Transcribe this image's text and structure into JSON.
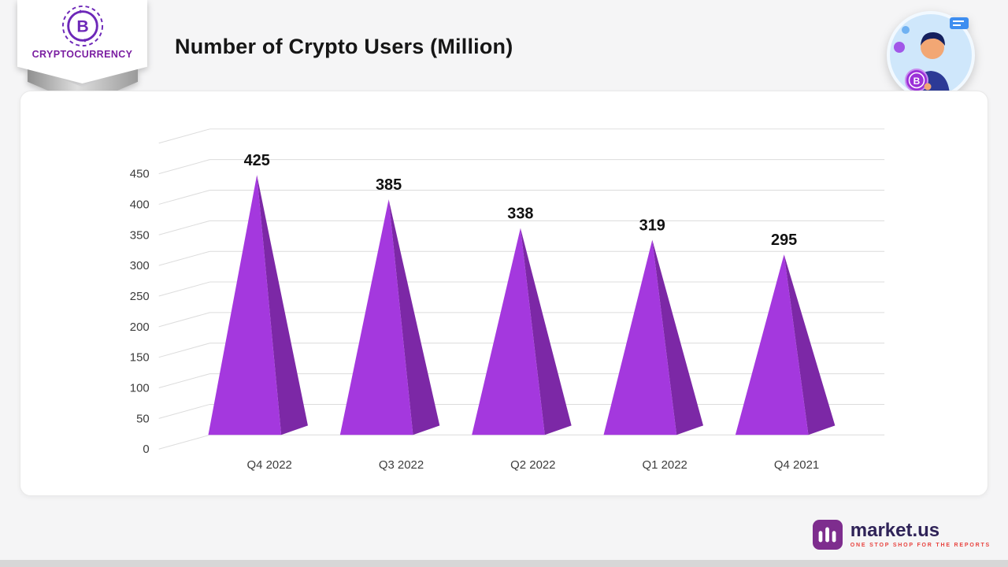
{
  "header": {
    "badge": {
      "label": "CRYPTOCURRENCY"
    },
    "title": "Number of Crypto Users (Million)"
  },
  "chart_data": {
    "type": "bar",
    "style": "3d-pyramid",
    "title": "Number of Crypto Users (Million)",
    "categories": [
      "Q4 2022",
      "Q3 2022",
      "Q2 2022",
      "Q1 2022",
      "Q4 2021"
    ],
    "values": [
      425,
      385,
      338,
      319,
      295
    ],
    "xlabel": "",
    "ylabel": "",
    "ylim": [
      0,
      500
    ],
    "ytick_step": 50,
    "ytick_labels": [
      "0",
      "50",
      "100",
      "150",
      "200",
      "250",
      "300",
      "350",
      "400",
      "450"
    ],
    "grid": true,
    "legend": "none",
    "colors": {
      "pyramid_front": "#a438de",
      "pyramid_side": "#7c28a6",
      "grid": "#dcdcdc",
      "value_label": "#111111",
      "tick_label": "#3c3c3c"
    }
  },
  "footer": {
    "brand": "market.us",
    "tagline": "ONE STOP SHOP FOR THE REPORTS"
  },
  "icons": {
    "badge_logo": "bitcoin-coin-icon",
    "mascot": "person-holding-bitcoin-pin",
    "footer_logo": "marketus-m-icon"
  }
}
